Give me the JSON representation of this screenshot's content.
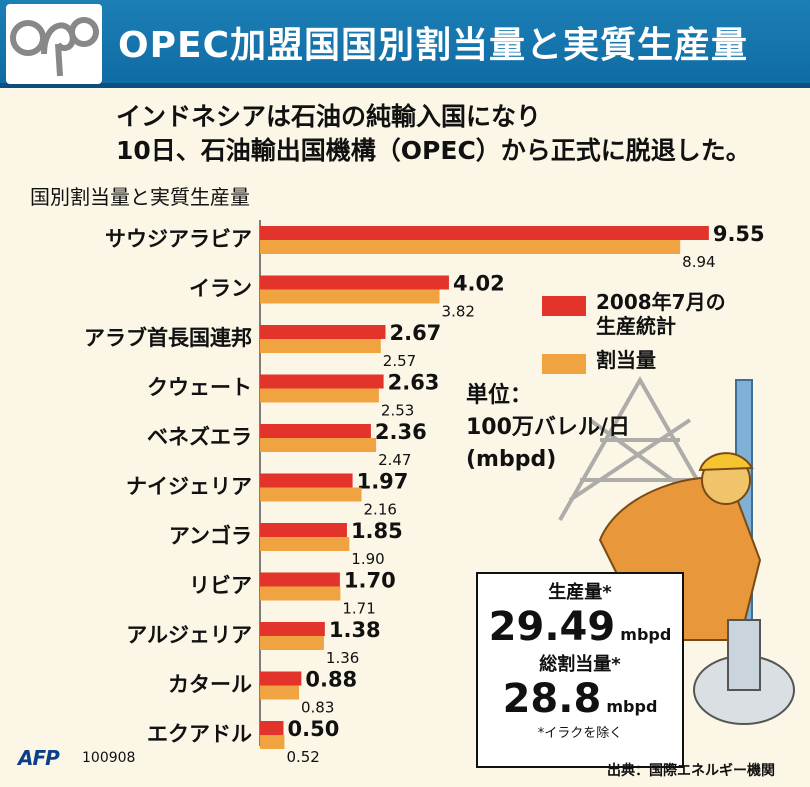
{
  "header": {
    "title": "OPEC加盟国国別割当量と実質生産量"
  },
  "lead": {
    "line1": "インドネシアは石油の純輸入国になり",
    "line2": "10日、石油輸出国機構（OPEC）から正式に脱退した。"
  },
  "chart_data": {
    "type": "bar",
    "title": "国別割当量と実質生産量",
    "categories": [
      "サウジアラビア",
      "イラン",
      "アラブ首長国連邦",
      "クウェート",
      "ベネズエラ",
      "ナイジェリア",
      "アンゴラ",
      "リビア",
      "アルジェリア",
      "カタール",
      "エクアドル"
    ],
    "series": [
      {
        "name": "2008年7月の生産統計",
        "values": [
          9.55,
          4.02,
          2.67,
          2.63,
          2.36,
          1.97,
          1.85,
          1.7,
          1.38,
          0.88,
          0.5
        ],
        "labels": [
          "9.55",
          "4.02",
          "2.67",
          "2.63",
          "2.36",
          "1.97",
          "1.85",
          "1.70",
          "1.38",
          "0.88",
          "0.50"
        ],
        "color": "#e2342b"
      },
      {
        "name": "割当量",
        "values": [
          8.94,
          3.82,
          2.57,
          2.53,
          2.47,
          2.16,
          1.9,
          1.71,
          1.36,
          0.83,
          0.52
        ],
        "labels": [
          "8.94",
          "3.82",
          "2.57",
          "2.53",
          "2.47",
          "2.16",
          "1.90",
          "1.71",
          "1.36",
          "0.83",
          "0.52"
        ],
        "color": "#f0a341"
      }
    ],
    "orientation": "horizontal",
    "legend_position": "right",
    "grid": false
  },
  "legend": {
    "items": [
      {
        "line1": "2008年7月の",
        "line2": "生産統計",
        "color": "#e2342b"
      },
      {
        "line1": "割当量",
        "line2": "",
        "color": "#f0a341"
      }
    ]
  },
  "unit": {
    "line1": "単位：",
    "line2": "100万バレル/日",
    "line3": "(mbpd)"
  },
  "summary": {
    "production_label": "生産量*",
    "production_value": "29.49",
    "production_unit": "mbpd",
    "quota_label": "総割当量*",
    "quota_value": "28.8",
    "quota_unit": "mbpd",
    "note": "*イラクを除く"
  },
  "footer": {
    "agency": "AFP",
    "date": "100908",
    "source": "出典：国際エネルギー機関"
  }
}
